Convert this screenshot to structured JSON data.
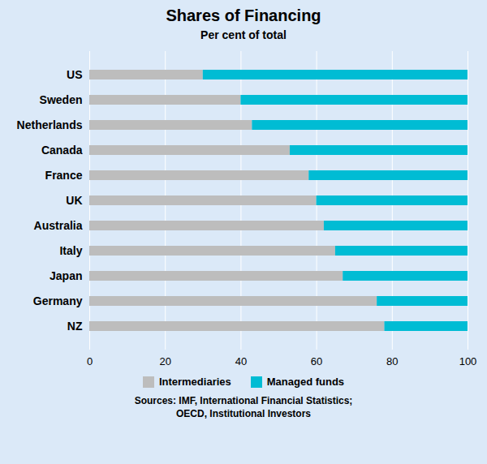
{
  "chart_data": {
    "type": "bar",
    "orientation": "horizontal",
    "stacked": true,
    "title": "Shares of Financing",
    "subtitle": "Per cent of total",
    "categories": [
      "US",
      "Sweden",
      "Netherlands",
      "Canada",
      "France",
      "UK",
      "Australia",
      "Italy",
      "Japan",
      "Germany",
      "NZ"
    ],
    "series": [
      {
        "name": "Intermediaries",
        "color": "#bdbdbd",
        "values": [
          30,
          40,
          43,
          53,
          58,
          60,
          62,
          65,
          67,
          76,
          78
        ]
      },
      {
        "name": "Managed funds",
        "color": "#00bcd4",
        "values": [
          70,
          60,
          57,
          47,
          42,
          40,
          38,
          35,
          33,
          24,
          22
        ]
      }
    ],
    "xlim": [
      0,
      100
    ],
    "xticks": [
      0,
      20,
      40,
      60,
      80,
      100
    ],
    "grid": true,
    "legend": "bottom",
    "annotations": [
      "Sources: IMF, International Financial Statistics;",
      "OECD, Institutional Investors"
    ]
  }
}
